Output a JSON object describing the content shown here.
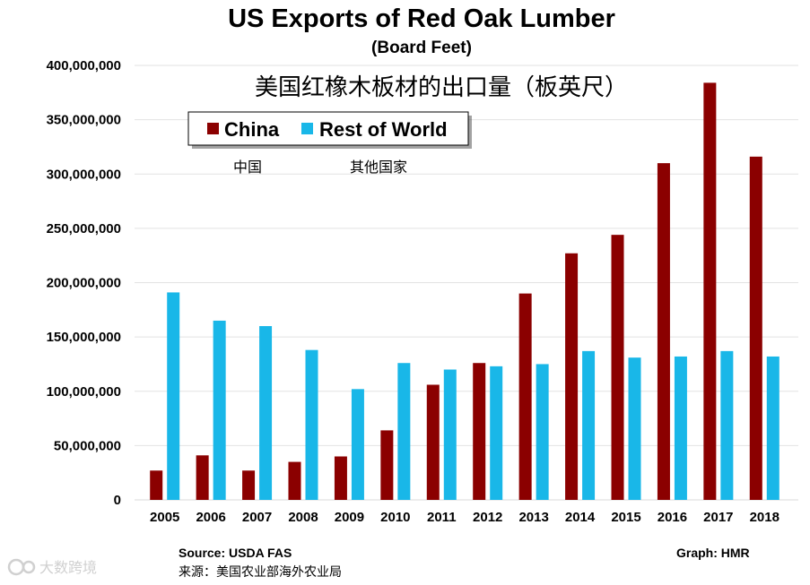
{
  "chart_data": {
    "type": "bar",
    "title": "US Exports of Red Oak Lumber",
    "subtitle": "(Board Feet)",
    "title_cn": "美国红橡木板材的出口量（板英尺）",
    "xlabel": "",
    "ylabel": "",
    "ylim": [
      0,
      400000000
    ],
    "yticks": [
      0,
      50000000,
      100000000,
      150000000,
      200000000,
      250000000,
      300000000,
      350000000,
      400000000
    ],
    "ytick_labels": [
      "0",
      "50,000,000",
      "100,000,000",
      "150,000,000",
      "200,000,000",
      "250,000,000",
      "300,000,000",
      "350,000,000",
      "400,000,000"
    ],
    "grid": true,
    "legend_position": "top-left",
    "categories": [
      "2005",
      "2006",
      "2007",
      "2008",
      "2009",
      "2010",
      "2011",
      "2012",
      "2013",
      "2014",
      "2015",
      "2016",
      "2017",
      "2018"
    ],
    "series": [
      {
        "name": "China",
        "name_cn": "中国",
        "color": "#8b0000",
        "values": [
          27000000,
          41000000,
          27000000,
          35000000,
          40000000,
          64000000,
          106000000,
          126000000,
          190000000,
          227000000,
          244000000,
          310000000,
          384000000,
          316000000
        ]
      },
      {
        "name": "Rest of World",
        "name_cn": "其他国家",
        "color": "#19b7e8",
        "values": [
          191000000,
          165000000,
          160000000,
          138000000,
          102000000,
          126000000,
          120000000,
          123000000,
          125000000,
          137000000,
          131000000,
          132000000,
          137000000,
          132000000
        ]
      }
    ]
  },
  "footer": {
    "source": "Source: USDA FAS",
    "source_cn": "来源：美国农业部海外农业局",
    "graph": "Graph: HMR"
  },
  "watermark": {
    "text": "大数跨境",
    "icon": "logo-icon"
  }
}
